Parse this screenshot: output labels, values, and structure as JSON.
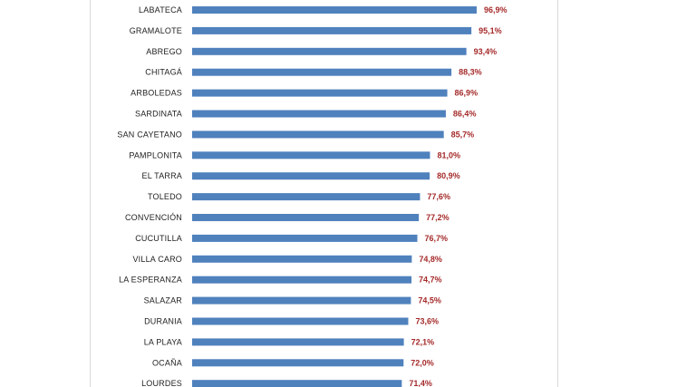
{
  "chart_data": {
    "type": "bar",
    "orientation": "horizontal",
    "categories": [
      "LABATECA",
      "GRAMALOTE",
      "ABREGO",
      "CHITAGÁ",
      "ARBOLEDAS",
      "SARDINATA",
      "SAN CAYETANO",
      "PAMPLONITA",
      "EL TARRA",
      "TOLEDO",
      "CONVENCIÓN",
      "CUCUTILLA",
      "VILLA CARO",
      "LA ESPERANZA",
      "SALAZAR",
      "DURANIA",
      "LA PLAYA",
      "OCAÑA",
      "LOURDES"
    ],
    "values": [
      96.9,
      95.1,
      93.4,
      88.3,
      86.9,
      86.4,
      85.7,
      81.0,
      80.9,
      77.6,
      77.2,
      76.7,
      74.8,
      74.7,
      74.5,
      73.6,
      72.1,
      72.0,
      71.4
    ],
    "value_labels": [
      "96,9%",
      "95,1%",
      "93,4%",
      "88,3%",
      "86,9%",
      "86,4%",
      "85,7%",
      "81,0%",
      "80,9%",
      "77,6%",
      "77,2%",
      "76,7%",
      "74,8%",
      "74,7%",
      "74,5%",
      "73,6%",
      "72,1%",
      "72,0%",
      "71,4%"
    ],
    "unit": "%",
    "xlim": [
      0,
      100
    ],
    "grid": false,
    "legend": "none",
    "colors": {
      "bar": "#4f81bd",
      "value_label": "#a52a2a",
      "category_label": "#222222",
      "frame": "#d9d9d9"
    }
  }
}
